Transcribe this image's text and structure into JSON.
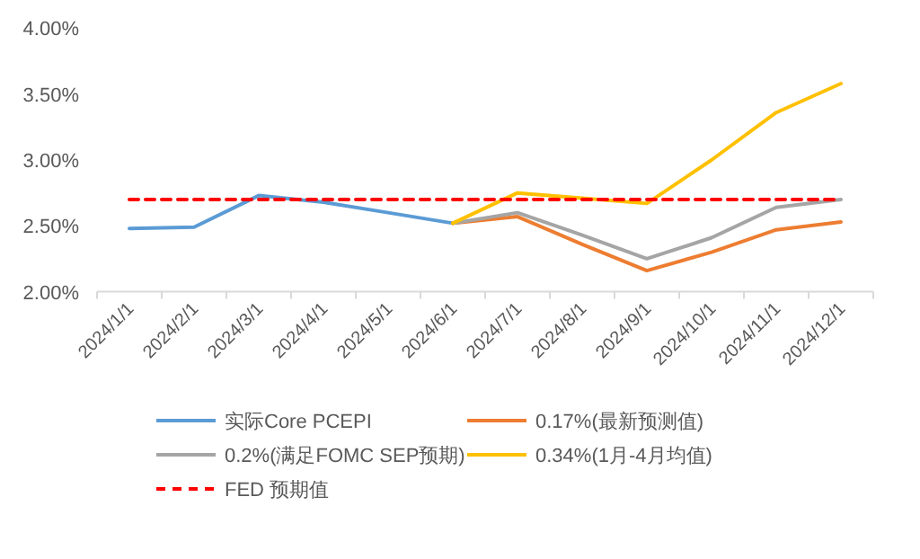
{
  "chart_data": {
    "type": "line",
    "categories": [
      "2024/1/1",
      "2024/2/1",
      "2024/3/1",
      "2024/4/1",
      "2024/5/1",
      "2024/6/1",
      "2024/7/1",
      "2024/8/1",
      "2024/9/1",
      "2024/10/1",
      "2024/11/1",
      "2024/12/1"
    ],
    "series": [
      {
        "name": "实际Core PCEPI",
        "color": "#5b9bd5",
        "values": [
          2.48,
          2.49,
          2.73,
          2.68,
          2.6,
          2.52,
          null,
          null,
          null,
          null,
          null,
          null
        ]
      },
      {
        "name": "0.17%(最新预测值)",
        "color": "#ed7d31",
        "values": [
          null,
          null,
          null,
          null,
          null,
          2.52,
          2.57,
          2.36,
          2.16,
          2.3,
          2.47,
          2.53
        ]
      },
      {
        "name": "0.2%(满足FOMC SEP预期)",
        "color": "#a5a5a5",
        "values": [
          null,
          null,
          null,
          null,
          null,
          2.52,
          2.6,
          2.43,
          2.25,
          2.41,
          2.64,
          2.7
        ]
      },
      {
        "name": "0.34%(1月-4月均值)",
        "color": "#ffc000",
        "values": [
          null,
          null,
          null,
          null,
          null,
          2.52,
          2.75,
          2.71,
          2.67,
          3.0,
          3.36,
          3.58
        ]
      },
      {
        "name": "FED 预期值",
        "color": "#ff0000",
        "line_style": "dashed",
        "values": [
          2.7,
          2.7,
          2.7,
          2.7,
          2.7,
          2.7,
          2.7,
          2.7,
          2.7,
          2.7,
          2.7,
          2.7
        ]
      }
    ],
    "ylim": [
      2.0,
      4.0
    ],
    "yticks": [
      {
        "value": 2.0,
        "label": "2.00%"
      },
      {
        "value": 2.5,
        "label": "2.50%"
      },
      {
        "value": 3.0,
        "label": "3.00%"
      },
      {
        "value": 3.5,
        "label": "3.50%"
      },
      {
        "value": 4.0,
        "label": "4.00%"
      }
    ],
    "grid": false,
    "legend": "bottom",
    "marker": "none"
  }
}
